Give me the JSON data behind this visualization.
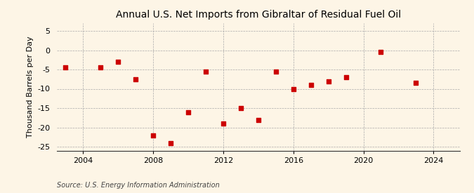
{
  "title": "Annual U.S. Net Imports from Gibraltar of Residual Fuel Oil",
  "ylabel": "Thousand Barrels per Day",
  "source": "Source: U.S. Energy Information Administration",
  "years": [
    2003,
    2005,
    2006,
    2007,
    2008,
    2009,
    2010,
    2011,
    2012,
    2013,
    2014,
    2015,
    2016,
    2017,
    2018,
    2019,
    2021,
    2023
  ],
  "values": [
    -4.5,
    -4.5,
    -3.0,
    -7.5,
    -22.0,
    -24.0,
    -16.0,
    -5.5,
    -19.0,
    -15.0,
    -18.0,
    -5.5,
    -10.0,
    -9.0,
    -8.0,
    -7.0,
    -0.5,
    -8.5
  ],
  "marker_color": "#cc0000",
  "marker_size": 4,
  "background_color": "#fdf5e6",
  "grid_color": "#aaaaaa",
  "xlim": [
    2002.5,
    2025.5
  ],
  "ylim": [
    -26,
    7
  ],
  "yticks": [
    5,
    0,
    -5,
    -10,
    -15,
    -20,
    -25
  ],
  "xticks": [
    2004,
    2008,
    2012,
    2016,
    2020,
    2024
  ],
  "title_fontsize": 10,
  "label_fontsize": 8,
  "source_fontsize": 7
}
